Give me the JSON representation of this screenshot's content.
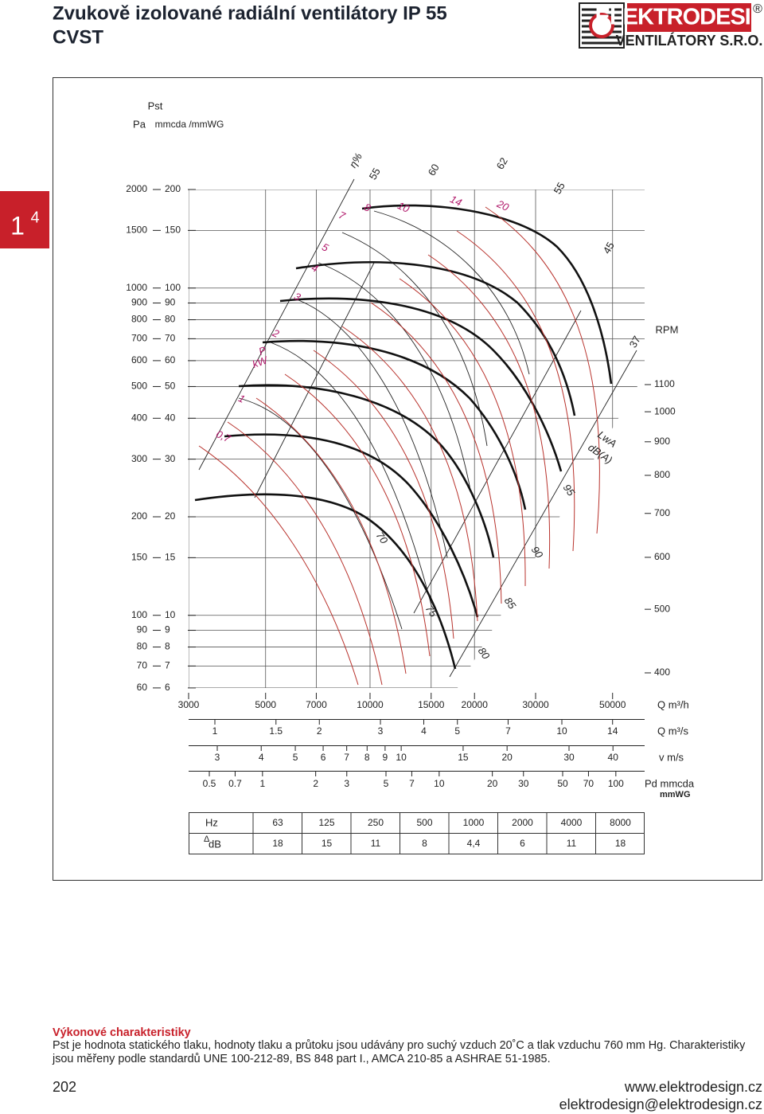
{
  "header": {
    "title_line1": "Zvukově izolované radiální ventilátory IP 55",
    "title_line2": "CVST",
    "logo_brand": "ELEKTRODESIGN",
    "logo_sub": "VENTILÁTORY S.R.O.",
    "logo_mark": "®"
  },
  "tab": {
    "main": "1",
    "sup": "4"
  },
  "diagram": {
    "pst_label": "Pst",
    "pa_label": "Pa",
    "mm_label": "mmcda /mmWG",
    "pa_ticks": [
      2000,
      1500,
      1000,
      900,
      800,
      700,
      600,
      500,
      400,
      300,
      200,
      150,
      100,
      90,
      80,
      70,
      60
    ],
    "mm_ticks": [
      200,
      150,
      100,
      90,
      80,
      70,
      60,
      50,
      40,
      30,
      20,
      15,
      10,
      9,
      8,
      7,
      6
    ],
    "rpm_label": "RPM",
    "rpm_ticks": [
      1100,
      1000,
      900,
      800,
      700,
      600,
      500,
      400
    ],
    "q_m3h_ticks": [
      3000,
      5000,
      7000,
      10000,
      15000,
      20000,
      30000,
      50000
    ],
    "q_m3h_label": "Q m³/h",
    "q_m3s_ticks": [
      1,
      1.5,
      2,
      3,
      4,
      5,
      7,
      10,
      14
    ],
    "q_m3s_label": "Q m³/s",
    "v_ticks": [
      3,
      4,
      5,
      6,
      7,
      8,
      9,
      10,
      15,
      20,
      30,
      40
    ],
    "v_label": "v m/s",
    "pd_ticks": [
      0.5,
      0.7,
      1,
      2,
      3,
      5,
      7,
      10,
      20,
      30,
      50,
      70,
      100
    ],
    "pd_label": "Pd mmcda",
    "pd_label2": "mmWG",
    "efficiency_label": "η%",
    "efficiency": [
      55,
      60,
      62,
      55,
      45,
      37
    ],
    "power_label": "P",
    "power_unit": "kW",
    "power": [
      "0,7",
      "1",
      "2",
      "3",
      "4",
      "5",
      "7",
      "8",
      "10",
      "14",
      "20"
    ],
    "sound_label": "LwA",
    "sound_unit": "dB(A)",
    "sound": [
      70,
      75,
      80,
      85,
      90,
      95
    ]
  },
  "correction_table": {
    "header": "Hz",
    "row_label_sym": "Δ",
    "row_label": "dB",
    "hz": [
      63,
      125,
      250,
      500,
      1000,
      2000,
      4000,
      8000
    ],
    "db": [
      18,
      15,
      11,
      8,
      "4,4",
      6,
      11,
      18
    ]
  },
  "footer": {
    "heading": "Výkonové charakteristiky",
    "text": "Pst je hodnota statického tlaku, hodnoty tlaku a průtoku jsou udávány pro suchý vzduch 20˚C a tlak vzduchu 760 mm Hg. Charakteristiky jsou měřeny podle standardů UNE 100-212-89, BS 848 part I., AMCA 210-85 a ASHRAE 51-1985.",
    "page": "202",
    "web": "www.elektrodesign.cz",
    "email": "elektrodesign@elektrodesign.cz"
  }
}
